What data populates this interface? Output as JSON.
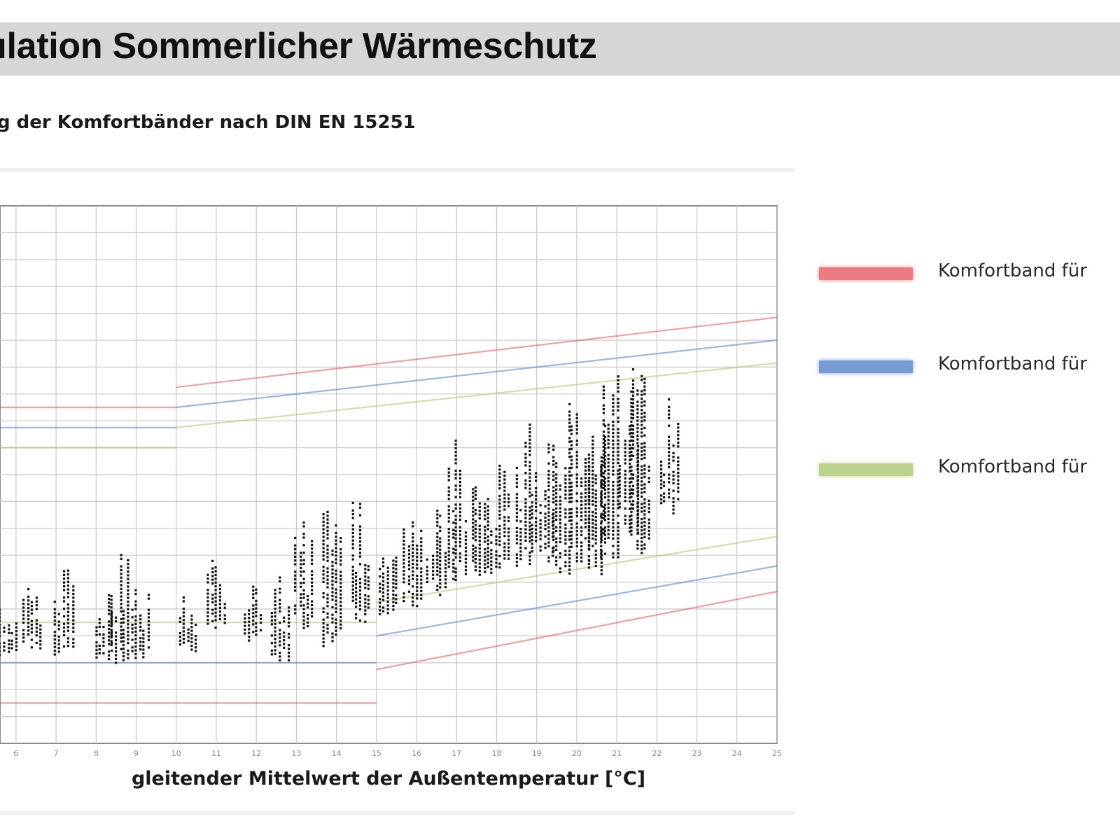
{
  "header": {
    "title": "ulation Sommerlicher Wärmeschutz",
    "subtitle": "g der Komfortbänder nach DIN EN 15251"
  },
  "chart_data": {
    "type": "scatter",
    "title": "g der Komfortbänder nach DIN EN 15251",
    "xlabel": "gleitender Mittelwert der Außentemperatur [°C]",
    "ylabel": "",
    "xlim": [
      5.6,
      25
    ],
    "x_ticks": [
      6,
      7,
      8,
      9,
      10,
      11,
      12,
      13,
      14,
      15,
      16,
      17,
      18,
      19,
      20,
      21,
      22,
      23,
      24,
      25
    ],
    "ylim": [
      0,
      40
    ],
    "grid": true,
    "legend_position": "right",
    "series": [
      {
        "name": "Komfortband für",
        "color": "#e8505b",
        "lines": [
          {
            "x": [
              5.6,
              10
            ],
            "y": [
              25.0,
              25.0
            ]
          },
          {
            "x": [
              10,
              25
            ],
            "y": [
              26.5,
              31.7
            ]
          },
          {
            "x": [
              5.6,
              15
            ],
            "y": [
              3.0,
              3.0
            ]
          },
          {
            "x": [
              15,
              25
            ],
            "y": [
              5.5,
              11.3
            ]
          }
        ]
      },
      {
        "name": "Komfortband für",
        "color": "#4a7bc8",
        "lines": [
          {
            "x": [
              5.6,
              10
            ],
            "y": [
              23.5,
              23.5
            ]
          },
          {
            "x": [
              10,
              25
            ],
            "y": [
              25.0,
              30.0
            ]
          },
          {
            "x": [
              5.6,
              15
            ],
            "y": [
              6.0,
              6.0
            ]
          },
          {
            "x": [
              15,
              25
            ],
            "y": [
              8.0,
              13.2
            ]
          }
        ]
      },
      {
        "name": "Komfortband für",
        "color": "#a9c46a",
        "lines": [
          {
            "x": [
              5.6,
              10
            ],
            "y": [
              22.0,
              22.0
            ]
          },
          {
            "x": [
              10,
              25
            ],
            "y": [
              23.5,
              28.3
            ]
          },
          {
            "x": [
              5.6,
              15
            ],
            "y": [
              9.0,
              9.0
            ]
          },
          {
            "x": [
              15,
              25
            ],
            "y": [
              10.5,
              15.4
            ]
          }
        ]
      }
    ],
    "scatter_clusters": [
      {
        "x": 5.8,
        "ymin": 6.5,
        "ymax": 11.5
      },
      {
        "x": 6.4,
        "ymin": 6.8,
        "ymax": 12.0
      },
      {
        "x": 7.2,
        "ymin": 6.5,
        "ymax": 13.5
      },
      {
        "x": 8.2,
        "ymin": 6.0,
        "ymax": 12.5
      },
      {
        "x": 8.6,
        "ymin": 6.0,
        "ymax": 15.0
      },
      {
        "x": 9.1,
        "ymin": 6.2,
        "ymax": 12.5
      },
      {
        "x": 10.3,
        "ymin": 6.8,
        "ymax": 11.5
      },
      {
        "x": 11.0,
        "ymin": 8.5,
        "ymax": 14.0
      },
      {
        "x": 11.9,
        "ymin": 7.5,
        "ymax": 13.0
      },
      {
        "x": 12.6,
        "ymin": 6.0,
        "ymax": 14.5
      },
      {
        "x": 13.2,
        "ymin": 8.5,
        "ymax": 17.0
      },
      {
        "x": 13.9,
        "ymin": 7.0,
        "ymax": 18.0
      },
      {
        "x": 14.6,
        "ymin": 9.0,
        "ymax": 20.0
      },
      {
        "x": 15.3,
        "ymin": 9.5,
        "ymax": 16.5
      },
      {
        "x": 15.9,
        "ymin": 10.0,
        "ymax": 21.5
      },
      {
        "x": 16.5,
        "ymin": 11.0,
        "ymax": 18.0
      },
      {
        "x": 17.0,
        "ymin": 11.5,
        "ymax": 23.5
      },
      {
        "x": 17.6,
        "ymin": 12.0,
        "ymax": 21.5
      },
      {
        "x": 18.1,
        "ymin": 12.5,
        "ymax": 22.5
      },
      {
        "x": 18.7,
        "ymin": 13.0,
        "ymax": 24.0
      },
      {
        "x": 19.2,
        "ymin": 13.5,
        "ymax": 25.0
      },
      {
        "x": 19.6,
        "ymin": 12.0,
        "ymax": 25.5
      },
      {
        "x": 20.1,
        "ymin": 13.0,
        "ymax": 27.0
      },
      {
        "x": 20.5,
        "ymin": 12.5,
        "ymax": 30.0
      },
      {
        "x": 20.8,
        "ymin": 13.5,
        "ymax": 28.0
      },
      {
        "x": 21.3,
        "ymin": 15.5,
        "ymax": 29.5
      },
      {
        "x": 21.6,
        "ymin": 14.0,
        "ymax": 27.5
      },
      {
        "x": 22.3,
        "ymin": 17.0,
        "ymax": 26.5
      }
    ]
  },
  "legend": {
    "items": [
      {
        "label": "Komfortband für",
        "color": "#e8505b"
      },
      {
        "label": "Komfortband für",
        "color": "#4a7bc8"
      },
      {
        "label": "Komfortband für",
        "color": "#a9c46a"
      }
    ]
  }
}
